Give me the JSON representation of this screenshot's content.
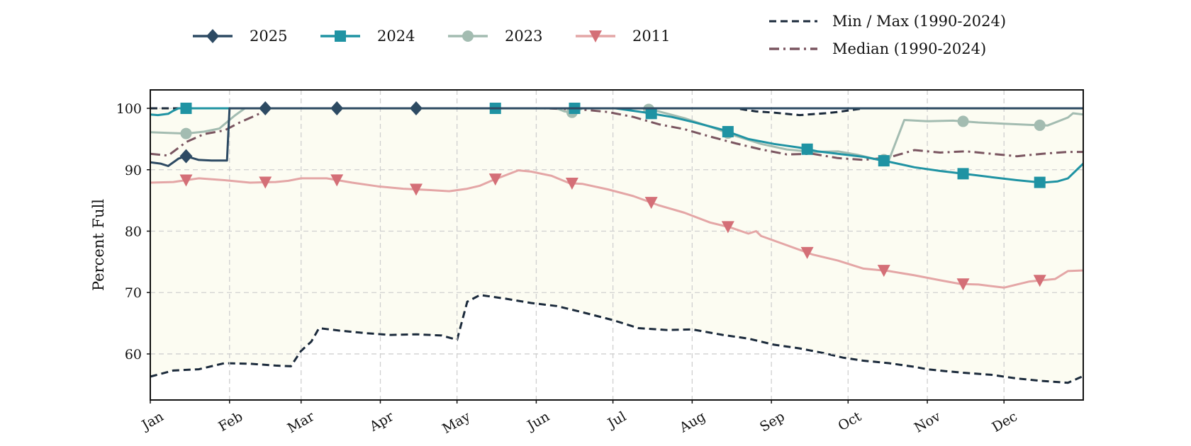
{
  "chart_data": {
    "type": "line",
    "title": "",
    "xlabel": "",
    "ylabel": "Percent Full",
    "ylim": [
      52.5,
      103
    ],
    "yticks": [
      60,
      70,
      80,
      90,
      100
    ],
    "xlim": [
      1,
      366
    ],
    "x_ticks": [
      {
        "label": "Jan",
        "day": 1
      },
      {
        "label": "Feb",
        "day": 32
      },
      {
        "label": "Mar",
        "day": 60
      },
      {
        "label": "Apr",
        "day": 91
      },
      {
        "label": "May",
        "day": 121
      },
      {
        "label": "Jun",
        "day": 152
      },
      {
        "label": "Jul",
        "day": 182
      },
      {
        "label": "Aug",
        "day": 213
      },
      {
        "label": "Sep",
        "day": 244
      },
      {
        "label": "Oct",
        "day": 274
      },
      {
        "label": "Nov",
        "day": 305
      },
      {
        "label": "Dec",
        "day": 335
      }
    ],
    "x_unit": "day of year",
    "grid": true,
    "legend_placement": "top",
    "band": {
      "label": "Min / Max (1990-2024)",
      "fill_color": "#fcfcf2",
      "line_color": "#1b2a3b",
      "min": [
        [
          1,
          56.3
        ],
        [
          10,
          57.3
        ],
        [
          20,
          57.5
        ],
        [
          30,
          58.5
        ],
        [
          40,
          58.4
        ],
        [
          50,
          58.1
        ],
        [
          56,
          58.0
        ],
        [
          60,
          60.5
        ],
        [
          64,
          62.0
        ],
        [
          67,
          64.2
        ],
        [
          75,
          63.8
        ],
        [
          85,
          63.4
        ],
        [
          95,
          63.1
        ],
        [
          105,
          63.2
        ],
        [
          115,
          63.0
        ],
        [
          121,
          62.3
        ],
        [
          125,
          68.5
        ],
        [
          130,
          69.6
        ],
        [
          140,
          69.0
        ],
        [
          150,
          68.3
        ],
        [
          160,
          67.8
        ],
        [
          170,
          66.8
        ],
        [
          182,
          65.5
        ],
        [
          192,
          64.2
        ],
        [
          203,
          63.9
        ],
        [
          213,
          64.0
        ],
        [
          225,
          63.1
        ],
        [
          235,
          62.5
        ],
        [
          245,
          61.5
        ],
        [
          255,
          60.9
        ],
        [
          265,
          60.1
        ],
        [
          272,
          59.4
        ],
        [
          280,
          58.9
        ],
        [
          290,
          58.5
        ],
        [
          300,
          57.9
        ],
        [
          305,
          57.5
        ],
        [
          312,
          57.2
        ],
        [
          320,
          56.9
        ],
        [
          330,
          56.6
        ],
        [
          340,
          56.0
        ],
        [
          350,
          55.6
        ],
        [
          360,
          55.3
        ],
        [
          366,
          56.4
        ]
      ],
      "max": [
        [
          1,
          100
        ],
        [
          230,
          100
        ],
        [
          238,
          99.5
        ],
        [
          245,
          99.3
        ],
        [
          255,
          98.9
        ],
        [
          265,
          99.2
        ],
        [
          270,
          99.4
        ],
        [
          280,
          100
        ],
        [
          366,
          100
        ]
      ]
    },
    "series": [
      {
        "name": "2025",
        "color": "#2d4a63",
        "marker": "diamond",
        "points": [
          [
            1,
            91.2
          ],
          [
            5,
            91.0
          ],
          [
            8,
            90.6
          ],
          [
            12,
            91.8
          ],
          [
            15,
            92.2
          ],
          [
            20,
            91.6
          ],
          [
            25,
            91.5
          ],
          [
            31,
            91.5
          ],
          [
            32,
            100
          ],
          [
            366,
            100
          ]
        ],
        "end_day": 366,
        "marker_days": [
          15,
          46,
          74,
          105
        ]
      },
      {
        "name": "2024",
        "color": "#1f93a3",
        "marker": "square",
        "points": [
          [
            1,
            99.0
          ],
          [
            4,
            98.9
          ],
          [
            8,
            99.1
          ],
          [
            10,
            99.6
          ],
          [
            12,
            100
          ],
          [
            183,
            100
          ],
          [
            195,
            99.3
          ],
          [
            205,
            98.6
          ],
          [
            213,
            97.8
          ],
          [
            225,
            96.5
          ],
          [
            235,
            95.0
          ],
          [
            245,
            94.2
          ],
          [
            255,
            93.6
          ],
          [
            262,
            93.0
          ],
          [
            270,
            92.6
          ],
          [
            280,
            92.1
          ],
          [
            290,
            91.3
          ],
          [
            300,
            90.4
          ],
          [
            310,
            89.8
          ],
          [
            320,
            89.3
          ],
          [
            330,
            88.8
          ],
          [
            340,
            88.3
          ],
          [
            350,
            87.9
          ],
          [
            356,
            88.1
          ],
          [
            360,
            88.6
          ],
          [
            363,
            89.8
          ],
          [
            366,
            91.0
          ]
        ],
        "marker_days": [
          15,
          136,
          167,
          197,
          227,
          258,
          288,
          319,
          349
        ]
      },
      {
        "name": "2023",
        "color": "#a3bcb1",
        "marker": "circle",
        "points": [
          [
            1,
            96.1
          ],
          [
            8,
            96.0
          ],
          [
            15,
            95.9
          ],
          [
            22,
            96.2
          ],
          [
            28,
            96.7
          ],
          [
            34,
            98.8
          ],
          [
            38,
            100
          ],
          [
            160,
            100
          ],
          [
            163,
            99.5
          ],
          [
            167,
            99.3
          ],
          [
            170,
            100
          ],
          [
            194,
            100
          ],
          [
            200,
            99.5
          ],
          [
            210,
            98.4
          ],
          [
            220,
            97.0
          ],
          [
            230,
            95.5
          ],
          [
            240,
            94.2
          ],
          [
            250,
            93.3
          ],
          [
            260,
            92.9
          ],
          [
            270,
            93.0
          ],
          [
            278,
            92.4
          ],
          [
            285,
            91.7
          ],
          [
            290,
            91.6
          ],
          [
            296,
            98.1
          ],
          [
            305,
            97.9
          ],
          [
            315,
            98.0
          ],
          [
            325,
            97.7
          ],
          [
            335,
            97.5
          ],
          [
            345,
            97.3
          ],
          [
            352,
            97.2
          ],
          [
            360,
            98.5
          ],
          [
            362,
            99.2
          ],
          [
            366,
            99.0
          ]
        ],
        "marker_days": [
          15,
          166,
          196,
          227,
          288,
          319,
          349
        ]
      },
      {
        "name": "2011",
        "color": "#d46f77",
        "line_color": "#e4a6a6",
        "marker": "triangle-down",
        "points": [
          [
            1,
            87.9
          ],
          [
            10,
            88.0
          ],
          [
            20,
            88.6
          ],
          [
            30,
            88.3
          ],
          [
            40,
            87.9
          ],
          [
            50,
            88.0
          ],
          [
            55,
            88.2
          ],
          [
            60,
            88.6
          ],
          [
            70,
            88.6
          ],
          [
            80,
            87.9
          ],
          [
            90,
            87.3
          ],
          [
            100,
            86.9
          ],
          [
            110,
            86.7
          ],
          [
            118,
            86.5
          ],
          [
            125,
            86.9
          ],
          [
            130,
            87.4
          ],
          [
            135,
            88.3
          ],
          [
            145,
            89.9
          ],
          [
            150,
            89.7
          ],
          [
            158,
            89.0
          ],
          [
            165,
            87.8
          ],
          [
            170,
            87.7
          ],
          [
            180,
            86.8
          ],
          [
            190,
            85.7
          ],
          [
            200,
            84.2
          ],
          [
            210,
            83.0
          ],
          [
            220,
            81.4
          ],
          [
            228,
            80.6
          ],
          [
            235,
            79.6
          ],
          [
            238,
            80.0
          ],
          [
            240,
            79.2
          ],
          [
            250,
            77.7
          ],
          [
            260,
            76.2
          ],
          [
            270,
            75.2
          ],
          [
            280,
            73.9
          ],
          [
            290,
            73.5
          ],
          [
            300,
            72.8
          ],
          [
            310,
            72.0
          ],
          [
            318,
            71.4
          ],
          [
            325,
            71.3
          ],
          [
            335,
            70.8
          ],
          [
            345,
            71.8
          ],
          [
            355,
            72.2
          ],
          [
            360,
            73.5
          ],
          [
            366,
            73.6
          ]
        ],
        "marker_days": [
          15,
          46,
          74,
          105,
          136,
          166,
          197,
          227,
          258,
          288,
          319,
          349
        ]
      },
      {
        "name": "Median (1990-2024)",
        "color": "#7a5560",
        "dash": "dashdot",
        "marker": "none",
        "points": [
          [
            1,
            92.6
          ],
          [
            8,
            92.3
          ],
          [
            15,
            94.5
          ],
          [
            22,
            95.8
          ],
          [
            30,
            96.4
          ],
          [
            36,
            97.7
          ],
          [
            42,
            98.8
          ],
          [
            48,
            100
          ],
          [
            155,
            100
          ],
          [
            170,
            99.8
          ],
          [
            180,
            99.4
          ],
          [
            190,
            98.6
          ],
          [
            200,
            97.4
          ],
          [
            210,
            96.6
          ],
          [
            220,
            95.4
          ],
          [
            230,
            94.3
          ],
          [
            240,
            93.3
          ],
          [
            250,
            92.5
          ],
          [
            260,
            92.6
          ],
          [
            270,
            91.9
          ],
          [
            280,
            91.6
          ],
          [
            290,
            92.0
          ],
          [
            300,
            93.2
          ],
          [
            310,
            92.8
          ],
          [
            320,
            93.0
          ],
          [
            330,
            92.6
          ],
          [
            340,
            92.2
          ],
          [
            350,
            92.6
          ],
          [
            360,
            92.9
          ],
          [
            366,
            92.9
          ]
        ],
        "marker_days": []
      }
    ]
  },
  "legend": {
    "items": [
      {
        "label": "2025",
        "series": 0
      },
      {
        "label": "2024",
        "series": 1
      },
      {
        "label": "2023",
        "series": 2
      },
      {
        "label": "2011",
        "series": 3
      }
    ],
    "minmax_label": "Min / Max (1990-2024)",
    "median_label": "Median (1990-2024)"
  }
}
